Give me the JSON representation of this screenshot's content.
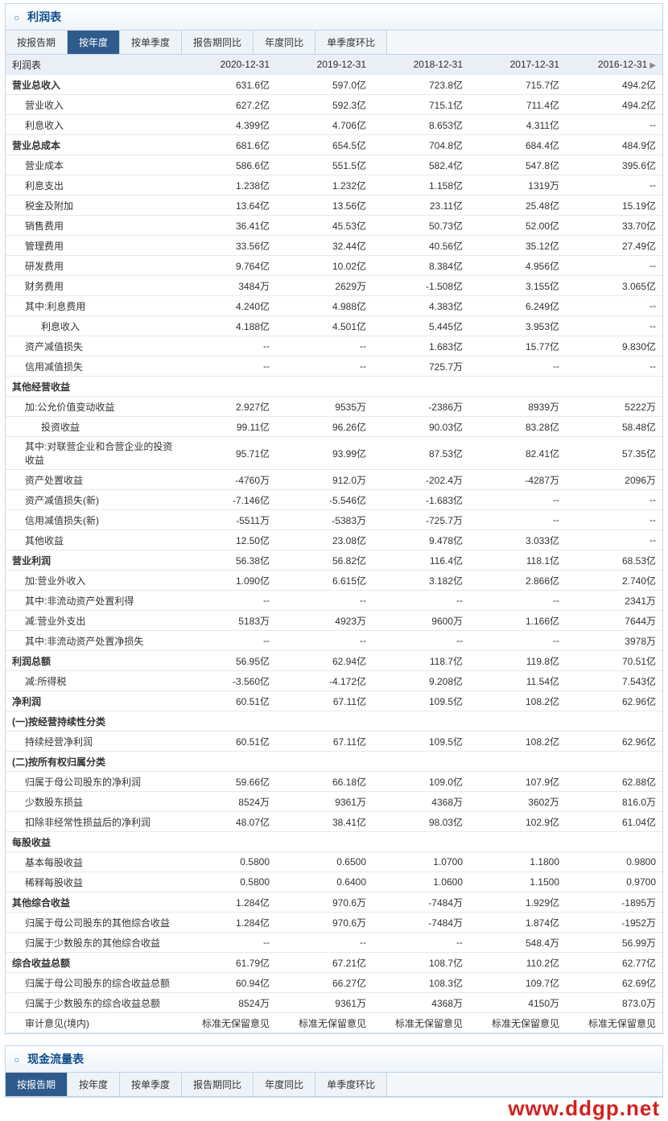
{
  "colors": {
    "border": "#c2d4e6",
    "header_bg": "#eaeff5",
    "tab_active_bg": "#2f5b8c",
    "tab_active_fg": "#ffffff",
    "tab_bg": "#eef3f8",
    "title_fg": "#0e4c8b",
    "watermark": "#d41f1f"
  },
  "income_section": {
    "title": "利润表",
    "tabs": [
      "按报告期",
      "按年度",
      "按单季度",
      "报告期同比",
      "年度同比",
      "单季度环比"
    ],
    "active_tab_index": 1,
    "table_header_first": "利润表",
    "columns": [
      "2020-12-31",
      "2019-12-31",
      "2018-12-31",
      "2017-12-31",
      "2016-12-31"
    ],
    "rows": [
      {
        "label": "营业总收入",
        "indent": 0,
        "cat": true,
        "v": [
          "631.6亿",
          "597.0亿",
          "723.8亿",
          "715.7亿",
          "494.2亿"
        ]
      },
      {
        "label": "营业收入",
        "indent": 1,
        "cat": false,
        "v": [
          "627.2亿",
          "592.3亿",
          "715.1亿",
          "711.4亿",
          "494.2亿"
        ]
      },
      {
        "label": "利息收入",
        "indent": 1,
        "cat": false,
        "v": [
          "4.399亿",
          "4.706亿",
          "8.653亿",
          "4.311亿",
          "--"
        ]
      },
      {
        "label": "营业总成本",
        "indent": 0,
        "cat": true,
        "v": [
          "681.6亿",
          "654.5亿",
          "704.8亿",
          "684.4亿",
          "484.9亿"
        ]
      },
      {
        "label": "营业成本",
        "indent": 1,
        "cat": false,
        "v": [
          "586.6亿",
          "551.5亿",
          "582.4亿",
          "547.8亿",
          "395.6亿"
        ]
      },
      {
        "label": "利息支出",
        "indent": 1,
        "cat": false,
        "v": [
          "1.238亿",
          "1.232亿",
          "1.158亿",
          "1319万",
          "--"
        ]
      },
      {
        "label": "税金及附加",
        "indent": 1,
        "cat": false,
        "v": [
          "13.64亿",
          "13.56亿",
          "23.11亿",
          "25.48亿",
          "15.19亿"
        ]
      },
      {
        "label": "销售费用",
        "indent": 1,
        "cat": false,
        "v": [
          "36.41亿",
          "45.53亿",
          "50.73亿",
          "52.00亿",
          "33.70亿"
        ]
      },
      {
        "label": "管理费用",
        "indent": 1,
        "cat": false,
        "v": [
          "33.56亿",
          "32.44亿",
          "40.56亿",
          "35.12亿",
          "27.49亿"
        ]
      },
      {
        "label": "研发费用",
        "indent": 1,
        "cat": false,
        "v": [
          "9.764亿",
          "10.02亿",
          "8.384亿",
          "4.956亿",
          "--"
        ]
      },
      {
        "label": "财务费用",
        "indent": 1,
        "cat": false,
        "v": [
          "3484万",
          "2629万",
          "-1.508亿",
          "3.155亿",
          "3.065亿"
        ]
      },
      {
        "label": "其中:利息费用",
        "indent": 1,
        "cat": false,
        "v": [
          "4.240亿",
          "4.988亿",
          "4.383亿",
          "6.249亿",
          "--"
        ]
      },
      {
        "label": "利息收入",
        "indent": 2,
        "cat": false,
        "v": [
          "4.188亿",
          "4.501亿",
          "5.445亿",
          "3.953亿",
          "--"
        ]
      },
      {
        "label": "资产减值损失",
        "indent": 1,
        "cat": false,
        "v": [
          "--",
          "--",
          "1.683亿",
          "15.77亿",
          "9.830亿"
        ]
      },
      {
        "label": "信用减值损失",
        "indent": 1,
        "cat": false,
        "v": [
          "--",
          "--",
          "725.7万",
          "--",
          "--"
        ]
      },
      {
        "label": "其他经营收益",
        "indent": 0,
        "cat": true,
        "v": [
          "",
          "",
          "",
          "",
          ""
        ]
      },
      {
        "label": "加:公允价值变动收益",
        "indent": 1,
        "cat": false,
        "v": [
          "2.927亿",
          "9535万",
          "-2386万",
          "8939万",
          "5222万"
        ]
      },
      {
        "label": "投资收益",
        "indent": 2,
        "cat": false,
        "v": [
          "99.11亿",
          "96.26亿",
          "90.03亿",
          "83.28亿",
          "58.48亿"
        ]
      },
      {
        "label": "其中:对联营企业和合营企业的投资收益",
        "indent": 1,
        "cat": false,
        "v": [
          "95.71亿",
          "93.99亿",
          "87.53亿",
          "82.41亿",
          "57.35亿"
        ]
      },
      {
        "label": "资产处置收益",
        "indent": 1,
        "cat": false,
        "v": [
          "-4760万",
          "912.0万",
          "-202.4万",
          "-4287万",
          "2096万"
        ]
      },
      {
        "label": "资产减值损失(新)",
        "indent": 1,
        "cat": false,
        "v": [
          "-7.146亿",
          "-5.546亿",
          "-1.683亿",
          "--",
          "--"
        ]
      },
      {
        "label": "信用减值损失(新)",
        "indent": 1,
        "cat": false,
        "v": [
          "-5511万",
          "-5383万",
          "-725.7万",
          "--",
          "--"
        ]
      },
      {
        "label": "其他收益",
        "indent": 1,
        "cat": false,
        "v": [
          "12.50亿",
          "23.08亿",
          "9.478亿",
          "3.033亿",
          "--"
        ]
      },
      {
        "label": "营业利润",
        "indent": 0,
        "cat": true,
        "v": [
          "56.38亿",
          "56.82亿",
          "116.4亿",
          "118.1亿",
          "68.53亿"
        ]
      },
      {
        "label": "加:营业外收入",
        "indent": 1,
        "cat": false,
        "v": [
          "1.090亿",
          "6.615亿",
          "3.182亿",
          "2.866亿",
          "2.740亿"
        ]
      },
      {
        "label": "其中:非流动资产处置利得",
        "indent": 1,
        "cat": false,
        "v": [
          "--",
          "--",
          "--",
          "--",
          "2341万"
        ]
      },
      {
        "label": "减:营业外支出",
        "indent": 1,
        "cat": false,
        "v": [
          "5183万",
          "4923万",
          "9600万",
          "1.166亿",
          "7644万"
        ]
      },
      {
        "label": "其中:非流动资产处置净损失",
        "indent": 1,
        "cat": false,
        "v": [
          "--",
          "--",
          "--",
          "--",
          "3978万"
        ]
      },
      {
        "label": "利润总额",
        "indent": 0,
        "cat": true,
        "v": [
          "56.95亿",
          "62.94亿",
          "118.7亿",
          "119.8亿",
          "70.51亿"
        ]
      },
      {
        "label": "减:所得税",
        "indent": 1,
        "cat": false,
        "v": [
          "-3.560亿",
          "-4.172亿",
          "9.208亿",
          "11.54亿",
          "7.543亿"
        ]
      },
      {
        "label": "净利润",
        "indent": 0,
        "cat": true,
        "v": [
          "60.51亿",
          "67.11亿",
          "109.5亿",
          "108.2亿",
          "62.96亿"
        ]
      },
      {
        "label": "(一)按经营持续性分类",
        "indent": 0,
        "cat": true,
        "v": [
          "",
          "",
          "",
          "",
          ""
        ]
      },
      {
        "label": "持续经营净利润",
        "indent": 1,
        "cat": false,
        "v": [
          "60.51亿",
          "67.11亿",
          "109.5亿",
          "108.2亿",
          "62.96亿"
        ]
      },
      {
        "label": "(二)按所有权归属分类",
        "indent": 0,
        "cat": true,
        "v": [
          "",
          "",
          "",
          "",
          ""
        ]
      },
      {
        "label": "归属于母公司股东的净利润",
        "indent": 1,
        "cat": false,
        "v": [
          "59.66亿",
          "66.18亿",
          "109.0亿",
          "107.9亿",
          "62.88亿"
        ]
      },
      {
        "label": "少数股东损益",
        "indent": 1,
        "cat": false,
        "v": [
          "8524万",
          "9361万",
          "4368万",
          "3602万",
          "816.0万"
        ]
      },
      {
        "label": "扣除非经常性损益后的净利润",
        "indent": 1,
        "cat": false,
        "v": [
          "48.07亿",
          "38.41亿",
          "98.03亿",
          "102.9亿",
          "61.04亿"
        ]
      },
      {
        "label": "每股收益",
        "indent": 0,
        "cat": true,
        "v": [
          "",
          "",
          "",
          "",
          ""
        ]
      },
      {
        "label": "基本每股收益",
        "indent": 1,
        "cat": false,
        "v": [
          "0.5800",
          "0.6500",
          "1.0700",
          "1.1800",
          "0.9800"
        ]
      },
      {
        "label": "稀释每股收益",
        "indent": 1,
        "cat": false,
        "v": [
          "0.5800",
          "0.6400",
          "1.0600",
          "1.1500",
          "0.9700"
        ]
      },
      {
        "label": "其他综合收益",
        "indent": 0,
        "cat": true,
        "v": [
          "1.284亿",
          "970.6万",
          "-7484万",
          "1.929亿",
          "-1895万"
        ]
      },
      {
        "label": "归属于母公司股东的其他综合收益",
        "indent": 1,
        "cat": false,
        "v": [
          "1.284亿",
          "970.6万",
          "-7484万",
          "1.874亿",
          "-1952万"
        ]
      },
      {
        "label": "归属于少数股东的其他综合收益",
        "indent": 1,
        "cat": false,
        "v": [
          "--",
          "--",
          "--",
          "548.4万",
          "56.99万"
        ]
      },
      {
        "label": "综合收益总额",
        "indent": 0,
        "cat": true,
        "v": [
          "61.79亿",
          "67.21亿",
          "108.7亿",
          "110.2亿",
          "62.77亿"
        ]
      },
      {
        "label": "归属于母公司股东的综合收益总额",
        "indent": 1,
        "cat": false,
        "v": [
          "60.94亿",
          "66.27亿",
          "108.3亿",
          "109.7亿",
          "62.69亿"
        ]
      },
      {
        "label": "归属于少数股东的综合收益总额",
        "indent": 1,
        "cat": false,
        "v": [
          "8524万",
          "9361万",
          "4368万",
          "4150万",
          "873.0万"
        ]
      },
      {
        "label": "审计意见(境内)",
        "indent": 1,
        "cat": false,
        "v": [
          "标准无保留意见",
          "标准无保留意见",
          "标准无保留意见",
          "标准无保留意见",
          "标准无保留意见"
        ]
      }
    ]
  },
  "cashflow_section": {
    "title": "现金流量表",
    "tabs": [
      "按报告期",
      "按年度",
      "按单季度",
      "报告期同比",
      "年度同比",
      "单季度环比"
    ],
    "active_tab_index": 0
  },
  "watermark": "www.ddgp.net"
}
